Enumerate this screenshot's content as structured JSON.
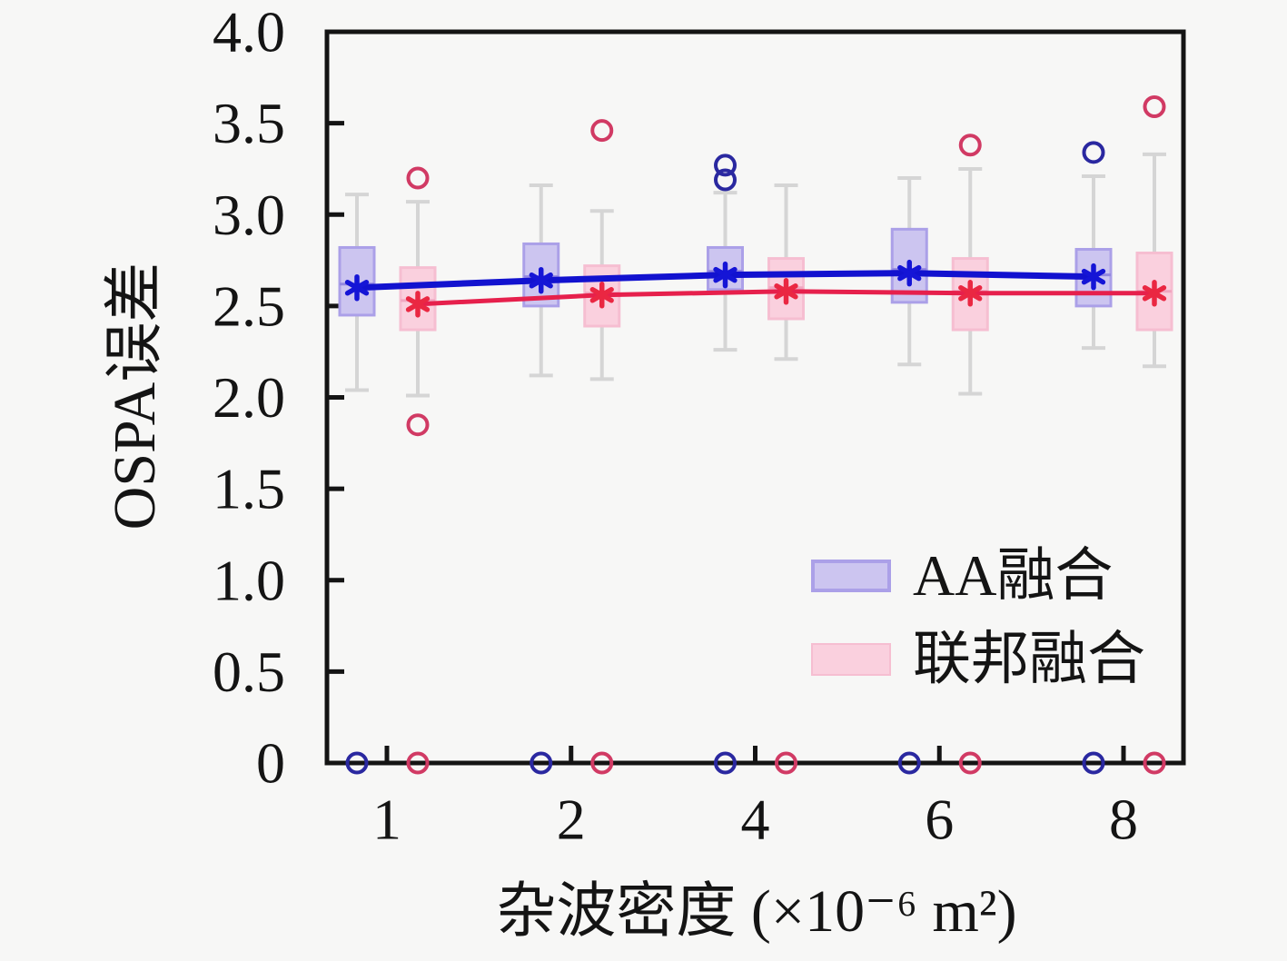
{
  "chart_data": {
    "type": "boxplot",
    "title": "",
    "xlabel": "杂波密度 (×10⁻⁶ m²)",
    "ylabel": "OSPA误差",
    "x_tick_labels": [
      "1",
      "2",
      "4",
      "6",
      "8"
    ],
    "y_ticks": [
      0,
      0.5,
      1.0,
      1.5,
      2.0,
      2.5,
      3.0,
      3.5,
      4.0
    ],
    "y_tick_labels": [
      "0",
      "0.5",
      "1.0",
      "1.5",
      "2.0",
      "2.5",
      "3.0",
      "3.5",
      "4.0"
    ],
    "ylim": [
      0,
      4.0
    ],
    "grid": false,
    "legend_position": "lower right inside",
    "background_color": "#f7f7f6",
    "axis_color": "#141414",
    "whisker_color": "#d5d5d5",
    "series": [
      {
        "name": "AA融合",
        "box_fill": "#ccc5f0",
        "box_edge": "#aba0e8",
        "median_color": "#9488e0",
        "line_color": "#1212cf",
        "marker_color": "#1515d6",
        "outlier_color": "#2a28a0",
        "means": [
          2.6,
          2.64,
          2.67,
          2.68,
          2.66
        ],
        "groups": [
          {
            "whisker_low": 2.04,
            "q1": 2.45,
            "median": 2.62,
            "q3": 2.82,
            "whisker_high": 3.11,
            "mean": 2.6,
            "outliers": [
              0
            ]
          },
          {
            "whisker_low": 2.12,
            "q1": 2.5,
            "median": 2.66,
            "q3": 2.84,
            "whisker_high": 3.16,
            "mean": 2.64,
            "outliers": [
              0
            ]
          },
          {
            "whisker_low": 2.26,
            "q1": 2.59,
            "median": 2.69,
            "q3": 2.82,
            "whisker_high": 3.12,
            "mean": 2.67,
            "outliers": [
              3.19,
              3.27,
              0
            ]
          },
          {
            "whisker_low": 2.18,
            "q1": 2.52,
            "median": 2.7,
            "q3": 2.92,
            "whisker_high": 3.2,
            "mean": 2.68,
            "outliers": [
              0
            ]
          },
          {
            "whisker_low": 2.27,
            "q1": 2.5,
            "median": 2.67,
            "q3": 2.81,
            "whisker_high": 3.21,
            "mean": 2.66,
            "outliers": [
              3.34,
              0
            ]
          }
        ]
      },
      {
        "name": "联邦融合",
        "box_fill": "#fad0de",
        "box_edge": "#f6bed1",
        "median_color": "#f0a6c0",
        "line_color": "#e6204c",
        "marker_color": "#ea2742",
        "outlier_color": "#d13a64",
        "means": [
          2.51,
          2.56,
          2.58,
          2.57,
          2.57
        ],
        "groups": [
          {
            "whisker_low": 2.01,
            "q1": 2.37,
            "median": 2.53,
            "q3": 2.71,
            "whisker_high": 3.07,
            "mean": 2.51,
            "outliers": [
              3.2,
              1.85,
              0
            ]
          },
          {
            "whisker_low": 2.1,
            "q1": 2.39,
            "median": 2.57,
            "q3": 2.72,
            "whisker_high": 3.02,
            "mean": 2.56,
            "outliers": [
              3.46,
              0
            ]
          },
          {
            "whisker_low": 2.21,
            "q1": 2.43,
            "median": 2.6,
            "q3": 2.76,
            "whisker_high": 3.16,
            "mean": 2.58,
            "outliers": [
              0
            ]
          },
          {
            "whisker_low": 2.02,
            "q1": 2.37,
            "median": 2.58,
            "q3": 2.76,
            "whisker_high": 3.25,
            "mean": 2.57,
            "outliers": [
              3.38,
              0
            ]
          },
          {
            "whisker_low": 2.17,
            "q1": 2.37,
            "median": 2.58,
            "q3": 2.79,
            "whisker_high": 3.33,
            "mean": 2.57,
            "outliers": [
              3.59,
              0
            ]
          }
        ]
      }
    ]
  }
}
